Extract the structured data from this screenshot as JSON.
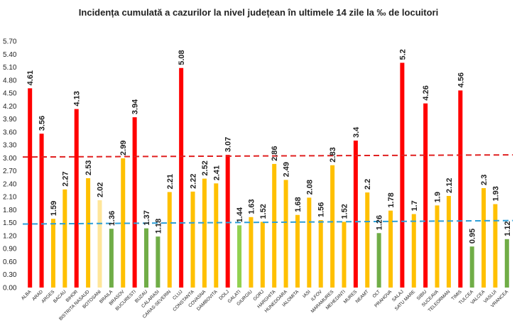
{
  "chart_data": {
    "type": "bar",
    "title": "Incidența cumulată a cazurilor la nivel județean în ultimele 14 zile la ‰ de locuitori",
    "xlabel": "",
    "ylabel": "",
    "ylim": [
      0,
      5.7
    ],
    "yticks": [
      "0.00",
      "0.30",
      "0.60",
      "0.90",
      "1.20",
      "1.50",
      "1.80",
      "2.10",
      "2.40",
      "2.70",
      "3.00",
      "3.30",
      "3.60",
      "3.90",
      "4.20",
      "4.50",
      "4.80",
      "5.10",
      "5.40",
      "5.70"
    ],
    "grid": false,
    "legend": "none",
    "categories": [
      "ALBA",
      "ARAD",
      "ARGES",
      "BACAU",
      "BIHOR",
      "BISTRITA NASAUD",
      "BOTOSANI",
      "BRAILA",
      "BRASOV",
      "BUCURESTI",
      "BUZAU",
      "CALARASI",
      "CARAS-SEVERIN",
      "CLUJ",
      "CONSTANTA",
      "COVASNA",
      "DAMBOVITA",
      "DOLJ",
      "GALATI",
      "GIURGIU",
      "GORJ",
      "HARGHITA",
      "HUNEDOARA",
      "IALOMITA",
      "IASI",
      "ILFOV",
      "MARAMURES",
      "MEHEDINTI",
      "MURES",
      "NEAMT",
      "OLT",
      "PRAHOVA",
      "SALAJ",
      "SATU MARE",
      "SIBIU",
      "SUCEAVA",
      "TELEORMAN",
      "TIMIS",
      "TULCEA",
      "VALCEA",
      "VASLUI",
      "VRANCEA"
    ],
    "values": [
      4.61,
      3.56,
      1.59,
      2.27,
      4.13,
      2.53,
      2.02,
      1.36,
      2.99,
      3.94,
      1.37,
      1.18,
      2.21,
      5.08,
      2.22,
      2.52,
      2.41,
      3.07,
      1.44,
      1.63,
      1.52,
      2.86,
      2.49,
      1.68,
      2.08,
      1.56,
      2.83,
      1.52,
      3.4,
      2.2,
      1.26,
      1.78,
      5.2,
      1.7,
      4.26,
      1.9,
      2.12,
      4.56,
      0.95,
      2.3,
      1.93,
      1.12
    ],
    "labels": [
      "4.61",
      "3.56",
      "1.59",
      "2.27",
      "4.13",
      "2.53",
      "2.02",
      "1.36",
      "2.99",
      "3.94",
      "1.37",
      "1.18",
      "2.21",
      "5.08",
      "2.22",
      "2.52",
      "2.41",
      "3.07",
      "1.44",
      "1.63",
      "1.52",
      "2.86",
      "2.49",
      "1.68",
      "2.08",
      "1.56",
      "2.83",
      "1.52",
      "3.4",
      "2.2",
      "1.26",
      "1.78",
      "5.2",
      "1.7",
      "4.26",
      "1.9",
      "2.12",
      "4.56",
      "0.95",
      "2.3",
      "1.93",
      "1.12"
    ],
    "colors": {
      "red": "#ff0000",
      "yellow": "#ffc000",
      "light_yellow": "#ffe699",
      "green": "#70ad47",
      "light_green": "#92d050",
      "threshold_3": "#e02020",
      "threshold_1_5": "#2e9fd8"
    },
    "bar_colors": [
      "red",
      "red",
      "yellow",
      "yellow",
      "red",
      "yellow",
      "light_yellow",
      "green",
      "yellow",
      "red",
      "green",
      "green",
      "yellow",
      "red",
      "yellow",
      "yellow",
      "yellow",
      "red",
      "light_green",
      "yellow",
      "yellow",
      "yellow",
      "yellow",
      "yellow",
      "yellow",
      "yellow",
      "yellow",
      "yellow",
      "red",
      "yellow",
      "green",
      "yellow",
      "red",
      "yellow",
      "red",
      "yellow",
      "yellow",
      "red",
      "green",
      "yellow",
      "yellow",
      "green"
    ],
    "reference_lines": [
      {
        "y_start": 3.02,
        "y_end": 3.07,
        "style": "dashed",
        "color": "threshold_3"
      },
      {
        "y_start": 1.47,
        "y_end": 1.55,
        "style": "dashed",
        "color": "threshold_1_5"
      }
    ]
  }
}
